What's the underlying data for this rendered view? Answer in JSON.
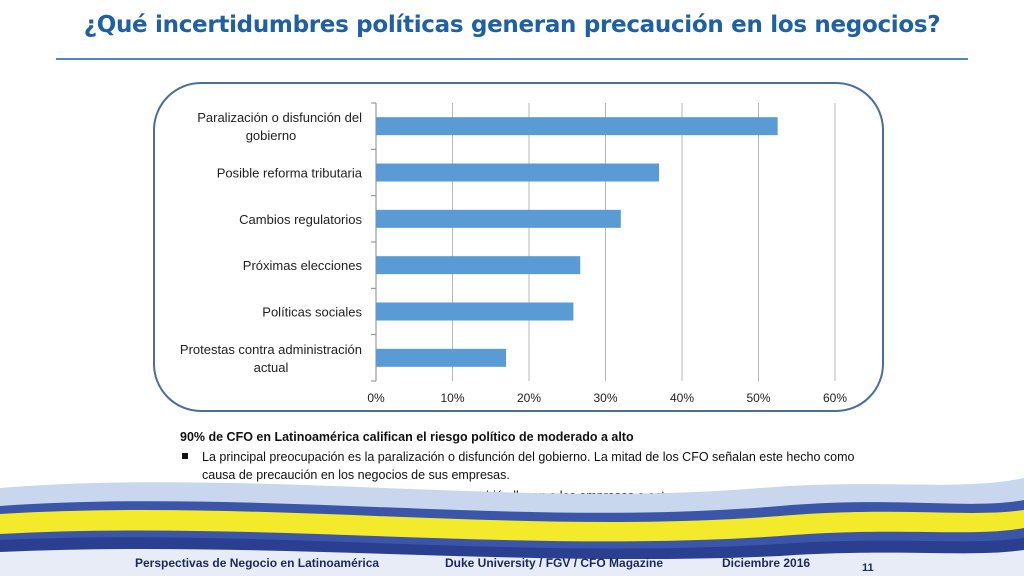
{
  "title": "¿Qué incertidumbres políticas generan precaución en los negocios?",
  "chart_data": {
    "type": "bar",
    "orientation": "horizontal",
    "categories": [
      "Paralización o disfunción del gobierno",
      "Posible reforma tributaria",
      "Cambios regulatorios",
      "Próximas elecciones",
      "Políticas sociales",
      "Protestas contra administración actual"
    ],
    "category_label_lines": [
      [
        "Paralización o disfunción del",
        "gobierno"
      ],
      [
        "Posible reforma tributaria"
      ],
      [
        "Cambios regulatorios"
      ],
      [
        "Próximas elecciones"
      ],
      [
        "Políticas sociales"
      ],
      [
        "Protestas contra administración",
        "actual"
      ]
    ],
    "values": [
      52.5,
      37,
      32,
      26.7,
      25.8,
      17
    ],
    "xlim": [
      0,
      60
    ],
    "x_ticks": [
      "0%",
      "10%",
      "20%",
      "30%",
      "40%",
      "50%",
      "60%"
    ],
    "grid": true,
    "bar_color": "#5b9bd5"
  },
  "notes": {
    "headline": "90% de CFO en Latinoamérica califican el riesgo político de moderado a alto",
    "bullets": [
      "La principal preocupación es la paralización o disfunción del gobierno. La mitad de los CFO señalan este hecho como causa de precaución en los negocios de sus empresas.",
      "Las reformas tributarias y cambios regulatorios también llevan a las empresas a actuar con precaución."
    ]
  },
  "footer": {
    "left": "Perspectivas de Negocio en Latinoamérica",
    "center": "Duke University / FGV / CFO Magazine",
    "right": "Diciembre 2016",
    "page_number": "11"
  }
}
